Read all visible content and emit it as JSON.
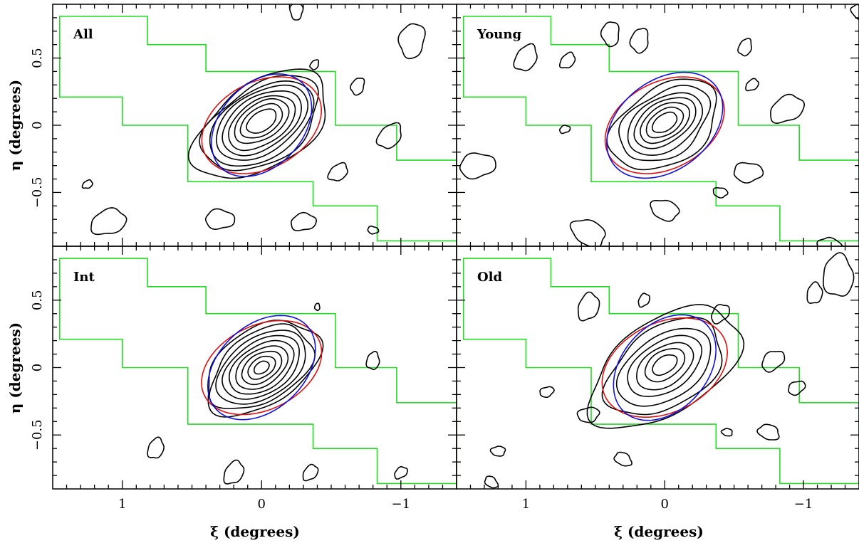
{
  "chart_data": {
    "type": "contour",
    "xlabel": "ξ (degrees)",
    "ylabel": "η (degrees)",
    "xlim": [
      1.5,
      -1.4
    ],
    "ylim": [
      -0.9,
      0.9
    ],
    "x_ticks": [
      1,
      0,
      -1
    ],
    "x_tick_labels": [
      "1",
      "0",
      "−1"
    ],
    "y_ticks": [
      -0.5,
      0,
      0.5
    ],
    "y_tick_labels": [
      "−0.5",
      "0",
      "0.5"
    ],
    "colors": {
      "footprint": "#22dd22",
      "ellipse_red": "#e01010",
      "ellipse_blue": "#1010e0",
      "contours": "#000000"
    },
    "footprint": [
      [
        1.45,
        0.81
      ],
      [
        0.82,
        0.81
      ],
      [
        0.82,
        0.6
      ],
      [
        0.4,
        0.6
      ],
      [
        0.4,
        0.4
      ],
      [
        -0.53,
        0.4
      ],
      [
        -0.53,
        0.0
      ],
      [
        -0.97,
        0.0
      ],
      [
        -0.97,
        -0.26
      ],
      [
        -1.4,
        -0.26
      ],
      [
        -1.4,
        -0.86
      ],
      [
        -0.83,
        -0.86
      ],
      [
        -0.83,
        -0.6
      ],
      [
        -0.37,
        -0.6
      ],
      [
        -0.37,
        -0.42
      ],
      [
        0.53,
        -0.42
      ],
      [
        0.53,
        0.0
      ],
      [
        1.0,
        0.0
      ],
      [
        1.0,
        0.21
      ],
      [
        1.45,
        0.21
      ]
    ],
    "panels": [
      {
        "label": "All",
        "ellipse_red": {
          "cx": 0.0,
          "cy": 0.0,
          "a": 0.46,
          "b": 0.32,
          "angle": -30
        },
        "ellipse_blue": {
          "cx": 0.0,
          "cy": 0.0,
          "a": 0.43,
          "b": 0.3,
          "angle": -50
        },
        "levels": [
          {
            "cx": 0.0,
            "cy": 0.03,
            "a": 0.12,
            "b": 0.07
          },
          {
            "cx": 0.0,
            "cy": 0.03,
            "a": 0.17,
            "b": 0.1
          },
          {
            "cx": 0.0,
            "cy": 0.03,
            "a": 0.22,
            "b": 0.13
          },
          {
            "cx": 0.0,
            "cy": 0.02,
            "a": 0.27,
            "b": 0.16
          },
          {
            "cx": 0.0,
            "cy": 0.02,
            "a": 0.32,
            "b": 0.19
          },
          {
            "cx": 0.0,
            "cy": 0.02,
            "a": 0.37,
            "b": 0.22
          },
          {
            "cx": 0.0,
            "cy": 0.01,
            "a": 0.42,
            "b": 0.25
          },
          {
            "cx": 0.0,
            "cy": 0.01,
            "a": 0.47,
            "b": 0.28
          },
          {
            "cx": 0.0,
            "cy": 0.0,
            "a": 0.55,
            "b": 0.31
          }
        ],
        "blobs": [
          {
            "cx": -0.25,
            "cy": 0.85,
            "r": 0.05
          },
          {
            "cx": -1.08,
            "cy": 0.63,
            "r": 0.1
          },
          {
            "cx": -0.69,
            "cy": 0.29,
            "r": 0.05
          },
          {
            "cx": -0.38,
            "cy": 0.45,
            "r": 0.03
          },
          {
            "cx": -0.92,
            "cy": -0.08,
            "r": 0.08
          },
          {
            "cx": -0.55,
            "cy": -0.35,
            "r": 0.06
          },
          {
            "cx": 1.25,
            "cy": -0.44,
            "r": 0.03
          },
          {
            "cx": 1.1,
            "cy": -0.72,
            "r": 0.1
          },
          {
            "cx": -0.3,
            "cy": -0.72,
            "r": 0.07
          },
          {
            "cx": 0.3,
            "cy": -0.7,
            "r": 0.08
          },
          {
            "cx": -0.8,
            "cy": -0.78,
            "r": 0.03
          }
        ]
      },
      {
        "label": "Young",
        "ellipse_red": {
          "cx": 0.0,
          "cy": 0.0,
          "a": 0.46,
          "b": 0.32,
          "angle": -30
        },
        "ellipse_blue": {
          "cx": 0.0,
          "cy": 0.0,
          "a": 0.47,
          "b": 0.33,
          "angle": -40
        },
        "levels": [
          {
            "cx": 0.0,
            "cy": 0.02,
            "a": 0.1,
            "b": 0.06
          },
          {
            "cx": 0.0,
            "cy": 0.02,
            "a": 0.15,
            "b": 0.09
          },
          {
            "cx": 0.0,
            "cy": 0.02,
            "a": 0.2,
            "b": 0.12
          },
          {
            "cx": 0.0,
            "cy": 0.02,
            "a": 0.25,
            "b": 0.15
          },
          {
            "cx": 0.0,
            "cy": 0.01,
            "a": 0.3,
            "b": 0.19
          },
          {
            "cx": 0.0,
            "cy": 0.01,
            "a": 0.36,
            "b": 0.23
          },
          {
            "cx": 0.0,
            "cy": 0.0,
            "a": 0.43,
            "b": 0.28
          }
        ],
        "blobs": [
          {
            "cx": 0.39,
            "cy": 0.68,
            "r": 0.07
          },
          {
            "cx": 0.18,
            "cy": 0.63,
            "r": 0.07
          },
          {
            "cx": -0.58,
            "cy": 0.58,
            "r": 0.05
          },
          {
            "cx": 1.0,
            "cy": 0.5,
            "r": 0.08
          },
          {
            "cx": 0.7,
            "cy": 0.48,
            "r": 0.05
          },
          {
            "cx": -0.63,
            "cy": 0.3,
            "r": 0.04
          },
          {
            "cx": -0.88,
            "cy": 0.12,
            "r": 0.1
          },
          {
            "cx": 0.72,
            "cy": -0.03,
            "r": 0.03
          },
          {
            "cx": 1.35,
            "cy": -0.3,
            "r": 0.1
          },
          {
            "cx": -0.6,
            "cy": -0.35,
            "r": 0.08
          },
          {
            "cx": -0.4,
            "cy": -0.5,
            "r": 0.04
          },
          {
            "cx": 0.0,
            "cy": -0.63,
            "r": 0.08
          },
          {
            "cx": 0.55,
            "cy": -0.8,
            "r": 0.1
          },
          {
            "cx": -1.2,
            "cy": -0.92,
            "r": 0.08
          },
          {
            "cx": -1.4,
            "cy": 0.84,
            "r": 0.05
          }
        ]
      },
      {
        "label": "Int",
        "ellipse_red": {
          "cx": 0.0,
          "cy": 0.0,
          "a": 0.46,
          "b": 0.31,
          "angle": -28
        },
        "ellipse_blue": {
          "cx": 0.0,
          "cy": 0.0,
          "a": 0.45,
          "b": 0.31,
          "angle": -45
        },
        "levels": [
          {
            "cx": 0.0,
            "cy": 0.0,
            "a": 0.06,
            "b": 0.04
          },
          {
            "cx": 0.0,
            "cy": 0.0,
            "a": 0.11,
            "b": 0.07
          },
          {
            "cx": 0.0,
            "cy": 0.0,
            "a": 0.16,
            "b": 0.1
          },
          {
            "cx": 0.0,
            "cy": 0.0,
            "a": 0.21,
            "b": 0.13
          },
          {
            "cx": 0.0,
            "cy": 0.0,
            "a": 0.26,
            "b": 0.16
          },
          {
            "cx": 0.0,
            "cy": 0.0,
            "a": 0.31,
            "b": 0.19
          },
          {
            "cx": 0.0,
            "cy": 0.0,
            "a": 0.36,
            "b": 0.22
          },
          {
            "cx": 0.0,
            "cy": 0.0,
            "a": 0.41,
            "b": 0.25
          },
          {
            "cx": 0.0,
            "cy": 0.0,
            "a": 0.46,
            "b": 0.28
          }
        ],
        "blobs": [
          {
            "cx": -0.4,
            "cy": 0.45,
            "r": 0.02
          },
          {
            "cx": -0.8,
            "cy": 0.05,
            "r": 0.05
          },
          {
            "cx": 0.76,
            "cy": -0.6,
            "r": 0.06
          },
          {
            "cx": 0.2,
            "cy": -0.78,
            "r": 0.07
          },
          {
            "cx": -0.35,
            "cy": -0.78,
            "r": 0.05
          },
          {
            "cx": -1.0,
            "cy": -0.78,
            "r": 0.04
          }
        ]
      },
      {
        "label": "Old",
        "ellipse_red": {
          "cx": 0.0,
          "cy": 0.0,
          "a": 0.48,
          "b": 0.33,
          "angle": -28
        },
        "ellipse_blue": {
          "cx": 0.0,
          "cy": 0.0,
          "a": 0.44,
          "b": 0.31,
          "angle": -50
        },
        "levels": [
          {
            "cx": 0.0,
            "cy": 0.02,
            "a": 0.1,
            "b": 0.06
          },
          {
            "cx": 0.0,
            "cy": 0.02,
            "a": 0.16,
            "b": 0.1
          },
          {
            "cx": 0.0,
            "cy": 0.01,
            "a": 0.23,
            "b": 0.14
          },
          {
            "cx": 0.0,
            "cy": 0.01,
            "a": 0.3,
            "b": 0.18
          },
          {
            "cx": 0.0,
            "cy": 0.0,
            "a": 0.38,
            "b": 0.23
          },
          {
            "cx": 0.0,
            "cy": 0.0,
            "a": 0.47,
            "b": 0.29
          },
          {
            "cx": 0.0,
            "cy": 0.0,
            "a": 0.62,
            "b": 0.34
          }
        ],
        "blobs": [
          {
            "cx": -1.25,
            "cy": 0.68,
            "r": 0.12
          },
          {
            "cx": -1.08,
            "cy": 0.55,
            "r": 0.06
          },
          {
            "cx": 0.55,
            "cy": 0.45,
            "r": 0.08
          },
          {
            "cx": 0.15,
            "cy": 0.5,
            "r": 0.04
          },
          {
            "cx": -0.4,
            "cy": 0.4,
            "r": 0.06
          },
          {
            "cx": -0.78,
            "cy": 0.05,
            "r": 0.07
          },
          {
            "cx": -0.95,
            "cy": -0.15,
            "r": 0.05
          },
          {
            "cx": 0.85,
            "cy": -0.18,
            "r": 0.04
          },
          {
            "cx": 0.55,
            "cy": -0.35,
            "r": 0.06
          },
          {
            "cx": 1.2,
            "cy": -0.62,
            "r": 0.04
          },
          {
            "cx": -0.45,
            "cy": -0.48,
            "r": 0.03
          },
          {
            "cx": -0.75,
            "cy": -0.48,
            "r": 0.06
          },
          {
            "cx": 0.3,
            "cy": -0.68,
            "r": 0.05
          },
          {
            "cx": 1.25,
            "cy": -0.85,
            "r": 0.04
          }
        ]
      }
    ]
  }
}
